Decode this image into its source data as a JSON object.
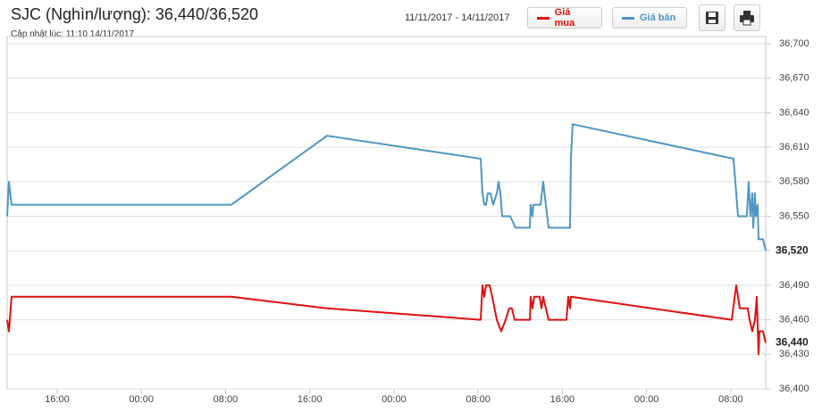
{
  "title": "SJC (Nghìn/lượng): 36,440/36,520",
  "subtitle": "Cập nhật lúc: 11:10 14/11/2017",
  "date_range": "11/11/2017 - 14/11/2017",
  "chart_data": {
    "type": "line",
    "xlim": [
      -4.75,
      67.32
    ],
    "xticks": [
      {
        "value": 0,
        "label": "16:00"
      },
      {
        "value": 8,
        "label": "00:00"
      },
      {
        "value": 16,
        "label": "08:00"
      },
      {
        "value": 24,
        "label": "16:00"
      },
      {
        "value": 32,
        "label": "00:00"
      },
      {
        "value": 40,
        "label": "08:00"
      },
      {
        "value": 48,
        "label": "16:00"
      },
      {
        "value": 56,
        "label": "00:00"
      },
      {
        "value": 64,
        "label": "08:00"
      }
    ],
    "ylim": [
      36400,
      36700
    ],
    "yticks": [
      {
        "value": 36400,
        "label": "36,400"
      },
      {
        "value": 36430,
        "label": "36,430"
      },
      {
        "value": 36460,
        "label": "36,460"
      },
      {
        "value": 36490,
        "label": "36,490"
      },
      {
        "value": 36520,
        "label": "36,520"
      },
      {
        "value": 36550,
        "label": "36,550"
      },
      {
        "value": 36580,
        "label": "36,580"
      },
      {
        "value": 36610,
        "label": "36,610"
      },
      {
        "value": 36640,
        "label": "36,640"
      },
      {
        "value": 36670,
        "label": "36,670"
      },
      {
        "value": 36700,
        "label": "36,700"
      }
    ],
    "grid": true,
    "series": [
      {
        "name": "Giá mua",
        "color": "#e01010",
        "end_label": "36,440",
        "x": [
          -4.75,
          -4.58,
          -4.33,
          16.55,
          25.64,
          40.24,
          40.41,
          40.58,
          40.75,
          41.09,
          41.34,
          41.77,
          42.19,
          42.61,
          42.95,
          43.21,
          43.46,
          44.91,
          44.99,
          45.16,
          45.33,
          45.84,
          46.01,
          46.18,
          46.43,
          46.69,
          48.39,
          48.56,
          48.73,
          48.81,
          64.09,
          64.52,
          64.86,
          65.62,
          65.79,
          66.04,
          66.3,
          66.47,
          66.64,
          66.72,
          67.06,
          67.32
        ],
        "values": [
          36460,
          36450,
          36480,
          36480,
          36470,
          36460,
          36490,
          36480,
          36490,
          36490,
          36480,
          36460,
          36450,
          36460,
          36470,
          36470,
          36460,
          36460,
          36480,
          36470,
          36480,
          36480,
          36470,
          36480,
          36470,
          36460,
          36460,
          36480,
          36470,
          36480,
          36460,
          36490,
          36470,
          36470,
          36460,
          36450,
          36460,
          36480,
          36430,
          36450,
          36450,
          36440
        ]
      },
      {
        "name": "Giá bán",
        "color": "#4f96c4",
        "end_label": "36,520",
        "x": [
          -4.75,
          -4.58,
          -4.33,
          16.55,
          25.64,
          40.24,
          40.41,
          40.58,
          40.75,
          40.92,
          41.17,
          41.43,
          41.77,
          41.94,
          42.11,
          42.28,
          43.04,
          43.55,
          44.91,
          44.99,
          45.16,
          45.25,
          45.93,
          46.18,
          46.43,
          46.69,
          48.73,
          48.81,
          48.98,
          64.26,
          64.52,
          64.69,
          65.53,
          65.7,
          65.87,
          66.04,
          66.13,
          66.3,
          66.38,
          66.55,
          66.64,
          67.06,
          67.32
        ],
        "values": [
          36550,
          36580,
          36560,
          36560,
          36620,
          36600,
          36570,
          36560,
          36560,
          36570,
          36570,
          36560,
          36570,
          36580,
          36570,
          36550,
          36550,
          36540,
          36540,
          36560,
          36550,
          36560,
          36560,
          36580,
          36560,
          36540,
          36540,
          36600,
          36630,
          36600,
          36570,
          36550,
          36550,
          36580,
          36550,
          36570,
          36540,
          36570,
          36550,
          36560,
          36530,
          36530,
          36520
        ]
      }
    ]
  }
}
